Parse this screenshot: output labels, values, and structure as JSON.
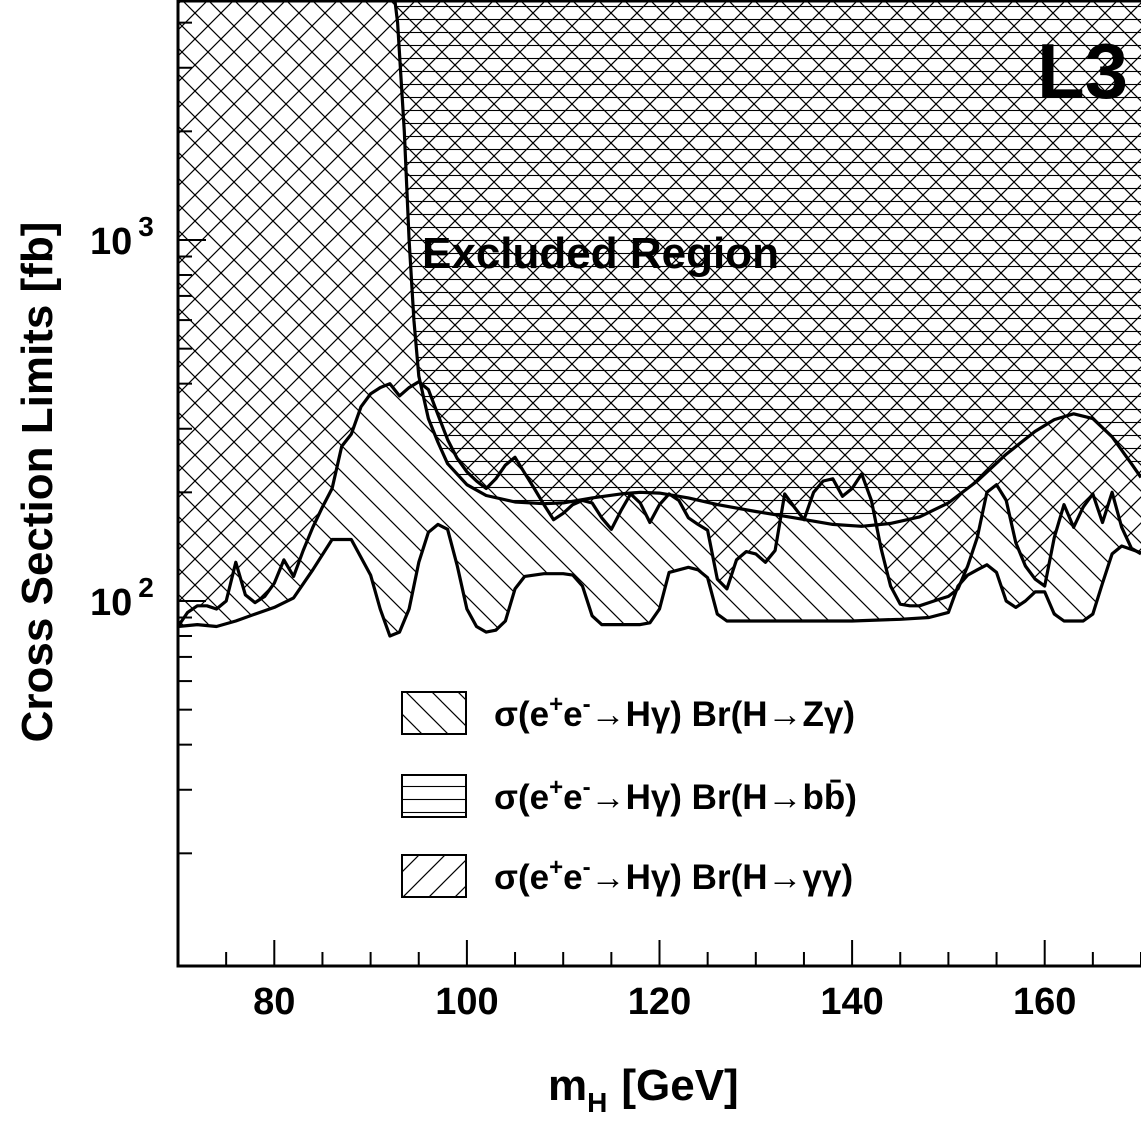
{
  "chart_data": {
    "type": "line",
    "logo": "L3",
    "annotation": "Excluded Region",
    "xlabel": "m",
    "xlabel_sub": "H",
    "xlabel_unit": "[GeV]",
    "ylabel": "Cross Section Limits  [fb]",
    "x_range": [
      70,
      170
    ],
    "y_range": [
      15,
      5000
    ],
    "y_scale": "log",
    "x_ticks": [
      80,
      100,
      120,
      140,
      160
    ],
    "y_ticks": [
      {
        "value": 100,
        "base": "10",
        "exp": "2"
      },
      {
        "value": 1000,
        "base": "10",
        "exp": "3"
      }
    ],
    "series": [
      {
        "label_sigma": "σ(e",
        "label_sup1": "+",
        "label_mid1": "e",
        "label_sup2": "-",
        "label_rest": "→Hγ) Br(H→Zγ)",
        "hatch": "back-diagonal",
        "points": [
          [
            70,
            85
          ],
          [
            72,
            86
          ],
          [
            74,
            85
          ],
          [
            76,
            88
          ],
          [
            78,
            92
          ],
          [
            80,
            96
          ],
          [
            82,
            102
          ],
          [
            84,
            122
          ],
          [
            86,
            148
          ],
          [
            88,
            148
          ],
          [
            90,
            118
          ],
          [
            91,
            95
          ],
          [
            92,
            80
          ],
          [
            93,
            82
          ],
          [
            94,
            95
          ],
          [
            95,
            128
          ],
          [
            96,
            155
          ],
          [
            97,
            163
          ],
          [
            98,
            158
          ],
          [
            99,
            125
          ],
          [
            100,
            95
          ],
          [
            101,
            85
          ],
          [
            102,
            82
          ],
          [
            103,
            83
          ],
          [
            104,
            88
          ],
          [
            105,
            108
          ],
          [
            106,
            117
          ],
          [
            108,
            119
          ],
          [
            110,
            119
          ],
          [
            111,
            118
          ],
          [
            112,
            110
          ],
          [
            113,
            91
          ],
          [
            114,
            86
          ],
          [
            116,
            86
          ],
          [
            118,
            86
          ],
          [
            119,
            87
          ],
          [
            120,
            95
          ],
          [
            121,
            120
          ],
          [
            123,
            124
          ],
          [
            124,
            122
          ],
          [
            125,
            116
          ],
          [
            126,
            92
          ],
          [
            127,
            88
          ],
          [
            130,
            88
          ],
          [
            135,
            88
          ],
          [
            140,
            88
          ],
          [
            145,
            89
          ],
          [
            148,
            90
          ],
          [
            150,
            93
          ],
          [
            151,
            110
          ],
          [
            152,
            118
          ],
          [
            153,
            122
          ],
          [
            154,
            126
          ],
          [
            155,
            120
          ],
          [
            156,
            100
          ],
          [
            157,
            96
          ],
          [
            158,
            100
          ],
          [
            159,
            106
          ],
          [
            160,
            106
          ],
          [
            161,
            92
          ],
          [
            162,
            88
          ],
          [
            164,
            88
          ],
          [
            165,
            92
          ],
          [
            166,
            112
          ],
          [
            167,
            135
          ],
          [
            168,
            142
          ],
          [
            170,
            136
          ]
        ]
      },
      {
        "label_sigma": "σ(e",
        "label_sup1": "+",
        "label_mid1": "e",
        "label_sup2": "-",
        "label_rest": "→Hγ) Br(H→b",
        "label_bbar": "b̄",
        "label_close": ")",
        "hatch": "horizontal",
        "points": [
          [
            92,
            6000
          ],
          [
            92.8,
            4000
          ],
          [
            93.5,
            2000
          ],
          [
            94,
            1000
          ],
          [
            94.5,
            600
          ],
          [
            95,
            420
          ],
          [
            96,
            320
          ],
          [
            97,
            275
          ],
          [
            98,
            240
          ],
          [
            100,
            210
          ],
          [
            102,
            196
          ],
          [
            105,
            188
          ],
          [
            108,
            186
          ],
          [
            110,
            187
          ],
          [
            113,
            193
          ],
          [
            116,
            198
          ],
          [
            118,
            200
          ],
          [
            120,
            199
          ],
          [
            123,
            193
          ],
          [
            126,
            185
          ],
          [
            130,
            177
          ],
          [
            134,
            170
          ],
          [
            138,
            163
          ],
          [
            141,
            161
          ],
          [
            144,
            164
          ],
          [
            147,
            171
          ],
          [
            150,
            187
          ],
          [
            153,
            215
          ],
          [
            156,
            255
          ],
          [
            159,
            295
          ],
          [
            161,
            318
          ],
          [
            163,
            330
          ],
          [
            165,
            320
          ],
          [
            167,
            285
          ],
          [
            169,
            240
          ],
          [
            170,
            220
          ]
        ]
      },
      {
        "label_sigma": "σ(e",
        "label_sup1": "+",
        "label_mid1": "e",
        "label_sup2": "-",
        "label_rest": "→Hγ) Br(H→γγ)",
        "hatch": "forward-diagonal",
        "points": [
          [
            70,
            85
          ],
          [
            71,
            93
          ],
          [
            72,
            97
          ],
          [
            73,
            97
          ],
          [
            74,
            95
          ],
          [
            75,
            100
          ],
          [
            76,
            128
          ],
          [
            77,
            104
          ],
          [
            78,
            99
          ],
          [
            79,
            103
          ],
          [
            80,
            112
          ],
          [
            81,
            130
          ],
          [
            82,
            117
          ],
          [
            83,
            138
          ],
          [
            84,
            160
          ],
          [
            85,
            182
          ],
          [
            86,
            205
          ],
          [
            87,
            268
          ],
          [
            88,
            290
          ],
          [
            89,
            345
          ],
          [
            90,
            375
          ],
          [
            91,
            390
          ],
          [
            92,
            400
          ],
          [
            93,
            370
          ],
          [
            94,
            390
          ],
          [
            95,
            405
          ],
          [
            96,
            385
          ],
          [
            97,
            328
          ],
          [
            98,
            280
          ],
          [
            99,
            248
          ],
          [
            100,
            228
          ],
          [
            101,
            215
          ],
          [
            102,
            205
          ],
          [
            103,
            218
          ],
          [
            104,
            238
          ],
          [
            105,
            250
          ],
          [
            106,
            226
          ],
          [
            107,
            205
          ],
          [
            108,
            185
          ],
          [
            109,
            168
          ],
          [
            110,
            175
          ],
          [
            111,
            185
          ],
          [
            112,
            190
          ],
          [
            113,
            187
          ],
          [
            114,
            170
          ],
          [
            115,
            158
          ],
          [
            116,
            178
          ],
          [
            117,
            198
          ],
          [
            118,
            187
          ],
          [
            119,
            165
          ],
          [
            120,
            185
          ],
          [
            121,
            198
          ],
          [
            122,
            190
          ],
          [
            123,
            170
          ],
          [
            124,
            163
          ],
          [
            125,
            157
          ],
          [
            126,
            115
          ],
          [
            127,
            108
          ],
          [
            128,
            130
          ],
          [
            129,
            137
          ],
          [
            130,
            135
          ],
          [
            131,
            128
          ],
          [
            132,
            138
          ],
          [
            133,
            198
          ],
          [
            134,
            182
          ],
          [
            135,
            168
          ],
          [
            136,
            200
          ],
          [
            137,
            215
          ],
          [
            138,
            218
          ],
          [
            139,
            195
          ],
          [
            140,
            205
          ],
          [
            141,
            225
          ],
          [
            142,
            190
          ],
          [
            143,
            140
          ],
          [
            144,
            110
          ],
          [
            145,
            98
          ],
          [
            146,
            97
          ],
          [
            147,
            97
          ],
          [
            148,
            99
          ],
          [
            149,
            101
          ],
          [
            150,
            103
          ],
          [
            151,
            108
          ],
          [
            152,
            125
          ],
          [
            153,
            150
          ],
          [
            154,
            200
          ],
          [
            155,
            210
          ],
          [
            156,
            190
          ],
          [
            157,
            145
          ],
          [
            158,
            125
          ],
          [
            159,
            115
          ],
          [
            160,
            110
          ],
          [
            161,
            150
          ],
          [
            162,
            185
          ],
          [
            163,
            160
          ],
          [
            164,
            182
          ],
          [
            165,
            198
          ],
          [
            166,
            165
          ],
          [
            167,
            200
          ],
          [
            168,
            160
          ],
          [
            169,
            140
          ],
          [
            170,
            135
          ]
        ]
      }
    ]
  }
}
